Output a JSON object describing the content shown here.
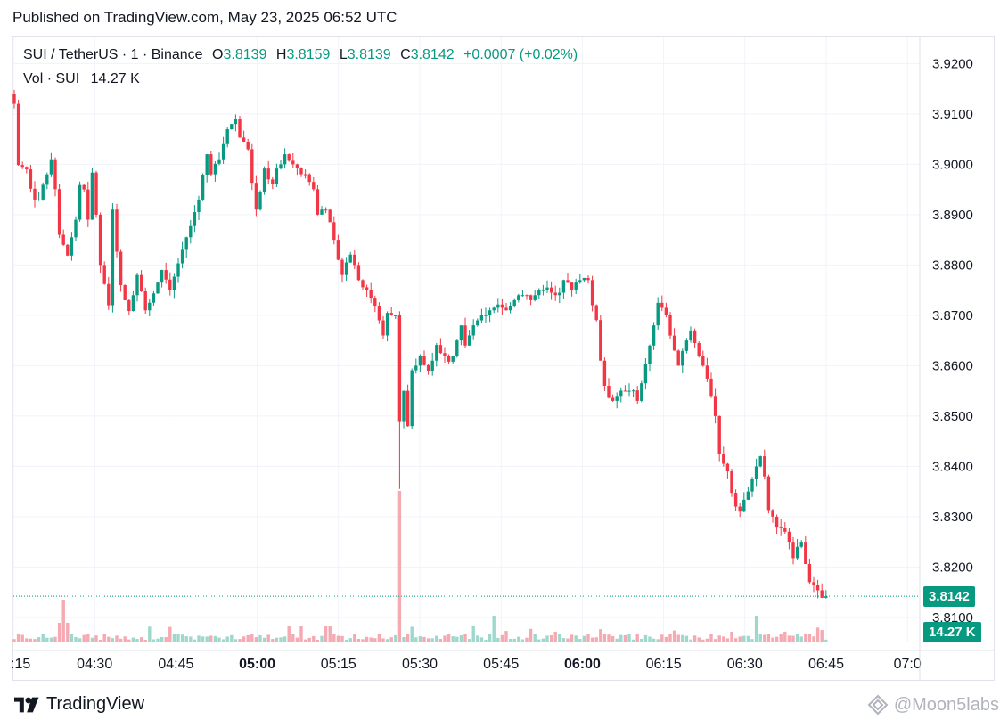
{
  "published": "Published on TradingView.com, May 23, 2025 06:52 UTC",
  "legend": {
    "symbol": "SUI / TetherUS · 1 · Binance",
    "open_label": "O",
    "open": "3.8139",
    "high_label": "H",
    "high": "3.8159",
    "low_label": "L",
    "low": "3.8139",
    "close_label": "C",
    "close": "3.8142",
    "change": "+0.0007 (+0.02%)",
    "vol_label": "Vol · SUI",
    "vol_value": "14.27 K"
  },
  "price_badge": "3.8142",
  "volume_badge": "14.27 K",
  "brand": "TradingView",
  "watermark": "@Moon5labs",
  "colors": {
    "up": "#089981",
    "down": "#f23645",
    "up_vol": "#9ed8cd",
    "down_vol": "#f5a9b0",
    "grid": "#f0f3fa"
  },
  "chart_data": {
    "type": "candlestick",
    "ylim": [
      3.8052,
      3.9252
    ],
    "yticks": [
      "3.9200",
      "3.9100",
      "3.9000",
      "3.8900",
      "3.8800",
      "3.8700",
      "3.8600",
      "3.8500",
      "3.8400",
      "3.8300",
      "3.8200",
      "3.8100"
    ],
    "xticks": [
      {
        "label": ":15",
        "bold": false
      },
      {
        "label": "04:30",
        "bold": false
      },
      {
        "label": "04:45",
        "bold": false
      },
      {
        "label": "05:00",
        "bold": true
      },
      {
        "label": "05:15",
        "bold": false
      },
      {
        "label": "05:30",
        "bold": false
      },
      {
        "label": "05:45",
        "bold": false
      },
      {
        "label": "06:00",
        "bold": true
      },
      {
        "label": "06:15",
        "bold": false
      },
      {
        "label": "06:30",
        "bold": false
      },
      {
        "label": "06:45",
        "bold": false
      },
      {
        "label": "07:0",
        "bold": false
      }
    ],
    "last_price": 3.8142,
    "price_anchors": [
      [
        0,
        3.912
      ],
      [
        1,
        3.9
      ],
      [
        3,
        3.899
      ],
      [
        5,
        3.893
      ],
      [
        6,
        3.893
      ],
      [
        8,
        3.898
      ],
      [
        9,
        3.901
      ],
      [
        10,
        3.894
      ],
      [
        11,
        3.886
      ],
      [
        13,
        3.882
      ],
      [
        15,
        3.889
      ],
      [
        16,
        3.896
      ],
      [
        17,
        3.895
      ],
      [
        18,
        3.889
      ],
      [
        19,
        3.898
      ],
      [
        20,
        3.89
      ],
      [
        21,
        3.88
      ],
      [
        23,
        3.872
      ],
      [
        24,
        3.891
      ],
      [
        26,
        3.876
      ],
      [
        28,
        3.87
      ],
      [
        30,
        3.878
      ],
      [
        31,
        3.876
      ],
      [
        32,
        3.871
      ],
      [
        34,
        3.874
      ],
      [
        36,
        3.879
      ],
      [
        38,
        3.875
      ],
      [
        41,
        3.883
      ],
      [
        43,
        3.888
      ],
      [
        45,
        3.893
      ],
      [
        47,
        3.902
      ],
      [
        48,
        3.898
      ],
      [
        50,
        3.901
      ],
      [
        52,
        3.907
      ],
      [
        54,
        3.909
      ],
      [
        55,
        3.906
      ],
      [
        57,
        3.903
      ],
      [
        59,
        3.891
      ],
      [
        61,
        3.898
      ],
      [
        63,
        3.896
      ],
      [
        66,
        3.902
      ],
      [
        68,
        3.9
      ],
      [
        71,
        3.898
      ],
      [
        73,
        3.895
      ],
      [
        74,
        3.89
      ],
      [
        76,
        3.892
      ],
      [
        78,
        3.885
      ],
      [
        80,
        3.878
      ],
      [
        82,
        3.883
      ],
      [
        84,
        3.877
      ],
      [
        86,
        3.875
      ],
      [
        88,
        3.872
      ],
      [
        90,
        3.866
      ],
      [
        91,
        3.87
      ],
      [
        93,
        3.87
      ],
      [
        94,
        3.85
      ],
      [
        95,
        3.855
      ],
      [
        96,
        3.848
      ],
      [
        97,
        3.858
      ],
      [
        98,
        3.86
      ],
      [
        99,
        3.862
      ],
      [
        101,
        3.859
      ],
      [
        103,
        3.863
      ],
      [
        105,
        3.862
      ],
      [
        107,
        3.862
      ],
      [
        109,
        3.868
      ],
      [
        110,
        3.864
      ],
      [
        112,
        3.868
      ],
      [
        114,
        3.87
      ],
      [
        116,
        3.871
      ],
      [
        118,
        3.872
      ],
      [
        120,
        3.871
      ],
      [
        122,
        3.873
      ],
      [
        124,
        3.875
      ],
      [
        126,
        3.873
      ],
      [
        128,
        3.875
      ],
      [
        130,
        3.875
      ],
      [
        132,
        3.874
      ],
      [
        134,
        3.877
      ],
      [
        136,
        3.876
      ],
      [
        138,
        3.877
      ],
      [
        140,
        3.877
      ],
      [
        141,
        3.872
      ],
      [
        142,
        3.87
      ],
      [
        143,
        3.861
      ],
      [
        144,
        3.856
      ],
      [
        146,
        3.853
      ],
      [
        148,
        3.855
      ],
      [
        150,
        3.855
      ],
      [
        152,
        3.853
      ],
      [
        154,
        3.86
      ],
      [
        156,
        3.868
      ],
      [
        157,
        3.873
      ],
      [
        159,
        3.87
      ],
      [
        160,
        3.866
      ],
      [
        162,
        3.86
      ],
      [
        163,
        3.863
      ],
      [
        165,
        3.867
      ],
      [
        167,
        3.862
      ],
      [
        169,
        3.858
      ],
      [
        171,
        3.85
      ],
      [
        172,
        3.842
      ],
      [
        174,
        3.839
      ],
      [
        176,
        3.832
      ],
      [
        177,
        3.831
      ],
      [
        179,
        3.835
      ],
      [
        181,
        3.84
      ],
      [
        182,
        3.842
      ],
      [
        183,
        3.838
      ],
      [
        184,
        3.832
      ],
      [
        186,
        3.828
      ],
      [
        188,
        3.827
      ],
      [
        190,
        3.823
      ],
      [
        192,
        3.825
      ],
      [
        194,
        3.817
      ],
      [
        196,
        3.816
      ],
      [
        197,
        3.8139
      ],
      [
        198,
        3.8142
      ]
    ],
    "volume_spike_index": 94,
    "notes_x_anchor": "05:30 near bar 94"
  }
}
